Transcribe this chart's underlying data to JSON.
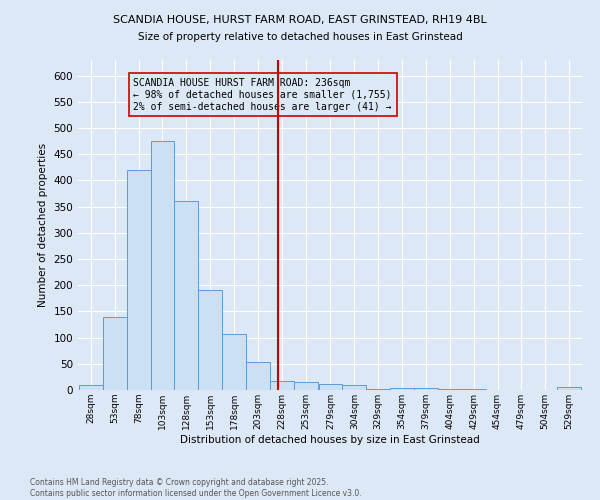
{
  "title1": "SCANDIA HOUSE, HURST FARM ROAD, EAST GRINSTEAD, RH19 4BL",
  "title2": "Size of property relative to detached houses in East Grinstead",
  "xlabel": "Distribution of detached houses by size in East Grinstead",
  "ylabel": "Number of detached properties",
  "footer1": "Contains HM Land Registry data © Crown copyright and database right 2025.",
  "footer2": "Contains public sector information licensed under the Open Government Licence v3.0.",
  "bins": [
    28,
    53,
    78,
    103,
    128,
    153,
    178,
    203,
    228,
    253,
    279,
    304,
    329,
    354,
    379,
    404,
    429,
    454,
    479,
    504,
    529
  ],
  "bar_heights": [
    10,
    140,
    420,
    475,
    360,
    190,
    107,
    53,
    18,
    15,
    12,
    9,
    2,
    4,
    3,
    2,
    1,
    0,
    0,
    0,
    5
  ],
  "bar_color": "#cce0f5",
  "bar_edge_color": "#5b9bd5",
  "vline_x": 236,
  "vline_color": "#cc0000",
  "annotation_text": "SCANDIA HOUSE HURST FARM ROAD: 236sqm\n← 98% of detached houses are smaller (1,755)\n2% of semi-detached houses are larger (41) →",
  "ylim": [
    0,
    630
  ],
  "yticks": [
    0,
    50,
    100,
    150,
    200,
    250,
    300,
    350,
    400,
    450,
    500,
    550,
    600
  ],
  "bg_color": "#dce8f5",
  "grid_color": "#ffffff"
}
